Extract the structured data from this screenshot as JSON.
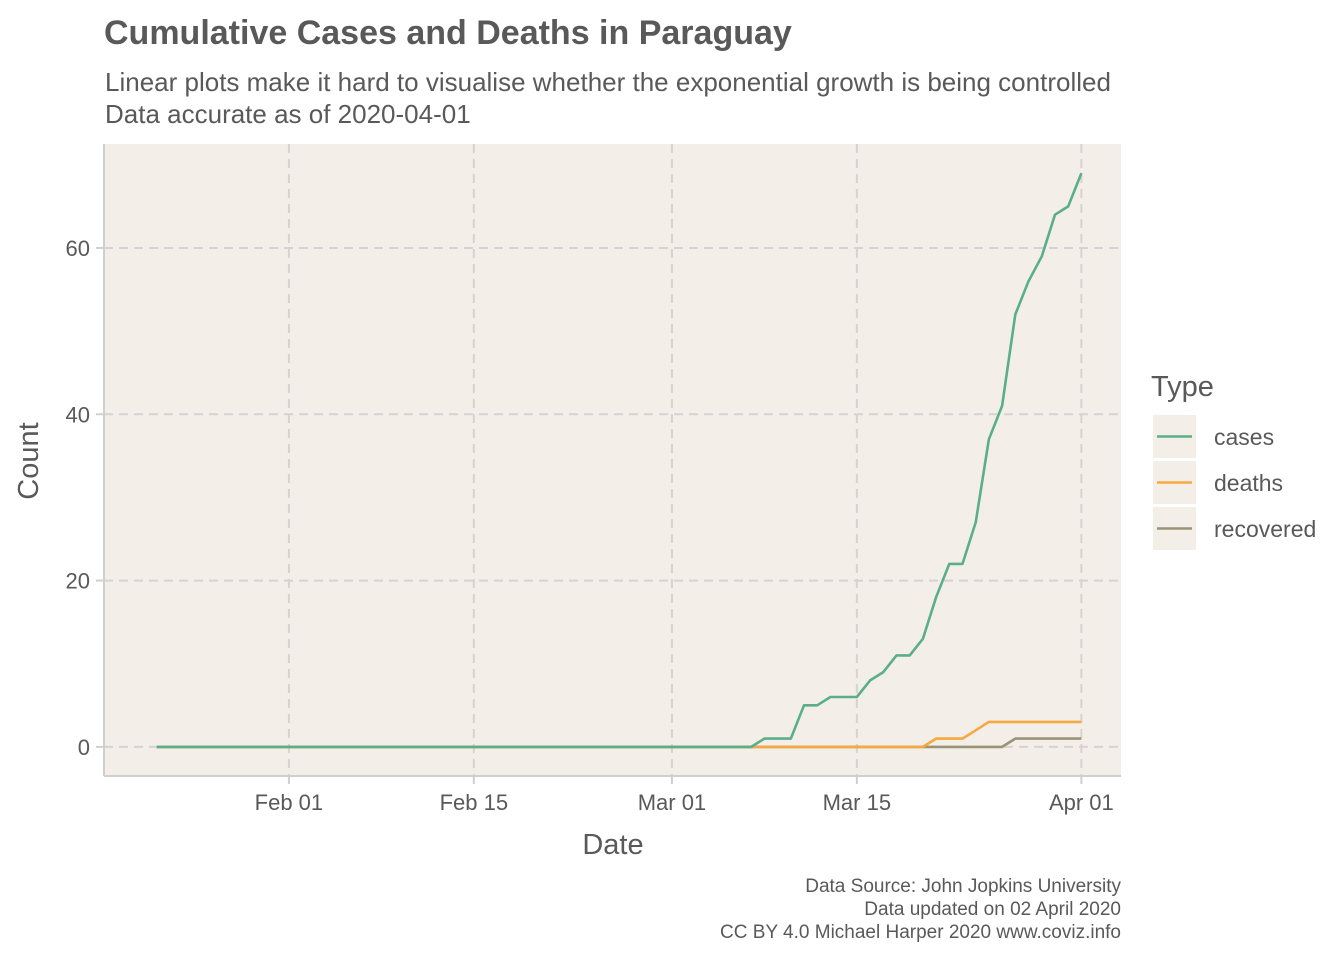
{
  "chart_data": {
    "type": "line",
    "title": "Cumulative Cases and Deaths in Paraguay",
    "subtitle_lines": [
      "Linear plots make it hard to visualise whether the exponential growth is being controlled",
      "Data accurate as of 2020-04-01"
    ],
    "xlabel": "Date",
    "ylabel": "Count",
    "x_ticks": [
      {
        "date": "2020-02-01",
        "label": "Feb 01"
      },
      {
        "date": "2020-02-15",
        "label": "Feb 15"
      },
      {
        "date": "2020-03-01",
        "label": "Mar 01"
      },
      {
        "date": "2020-03-15",
        "label": "Mar 15"
      },
      {
        "date": "2020-04-01",
        "label": "Apr 01"
      }
    ],
    "y_ticks": [
      0,
      20,
      40,
      60
    ],
    "xlim": [
      "2020-01-18",
      "2020-04-04"
    ],
    "ylim": [
      -3.5,
      72.5
    ],
    "grid": true,
    "legend": {
      "title": "Type",
      "position": "right"
    },
    "series": [
      {
        "name": "cases",
        "color": "#5aaf8a",
        "points": [
          [
            "2020-01-22",
            0
          ],
          [
            "2020-03-07",
            0
          ],
          [
            "2020-03-08",
            1
          ],
          [
            "2020-03-09",
            1
          ],
          [
            "2020-03-10",
            1
          ],
          [
            "2020-03-11",
            5
          ],
          [
            "2020-03-12",
            5
          ],
          [
            "2020-03-13",
            6
          ],
          [
            "2020-03-14",
            6
          ],
          [
            "2020-03-15",
            6
          ],
          [
            "2020-03-16",
            8
          ],
          [
            "2020-03-17",
            9
          ],
          [
            "2020-03-18",
            11
          ],
          [
            "2020-03-19",
            11
          ],
          [
            "2020-03-20",
            13
          ],
          [
            "2020-03-21",
            18
          ],
          [
            "2020-03-22",
            22
          ],
          [
            "2020-03-23",
            22
          ],
          [
            "2020-03-24",
            27
          ],
          [
            "2020-03-25",
            37
          ],
          [
            "2020-03-26",
            41
          ],
          [
            "2020-03-27",
            52
          ],
          [
            "2020-03-28",
            56
          ],
          [
            "2020-03-29",
            59
          ],
          [
            "2020-03-30",
            64
          ],
          [
            "2020-03-31",
            65
          ],
          [
            "2020-04-01",
            69
          ]
        ]
      },
      {
        "name": "deaths",
        "color": "#f5a940",
        "points": [
          [
            "2020-01-22",
            0
          ],
          [
            "2020-03-20",
            0
          ],
          [
            "2020-03-21",
            1
          ],
          [
            "2020-03-22",
            1
          ],
          [
            "2020-03-23",
            1
          ],
          [
            "2020-03-24",
            2
          ],
          [
            "2020-03-25",
            3
          ],
          [
            "2020-04-01",
            3
          ]
        ]
      },
      {
        "name": "recovered",
        "color": "#9a9477",
        "points": [
          [
            "2020-01-22",
            0
          ],
          [
            "2020-03-26",
            0
          ],
          [
            "2020-03-27",
            1
          ],
          [
            "2020-04-01",
            1
          ]
        ]
      }
    ],
    "caption_lines": [
      "Data Source: John Jopkins University",
      "Data updated on 02 April 2020",
      "CC BY 4.0 Michael Harper 2020 www.coviz.info"
    ],
    "colors": {
      "panel_background": "#f4eee8",
      "grid": "#d3d3d3",
      "text": "#595959"
    }
  }
}
